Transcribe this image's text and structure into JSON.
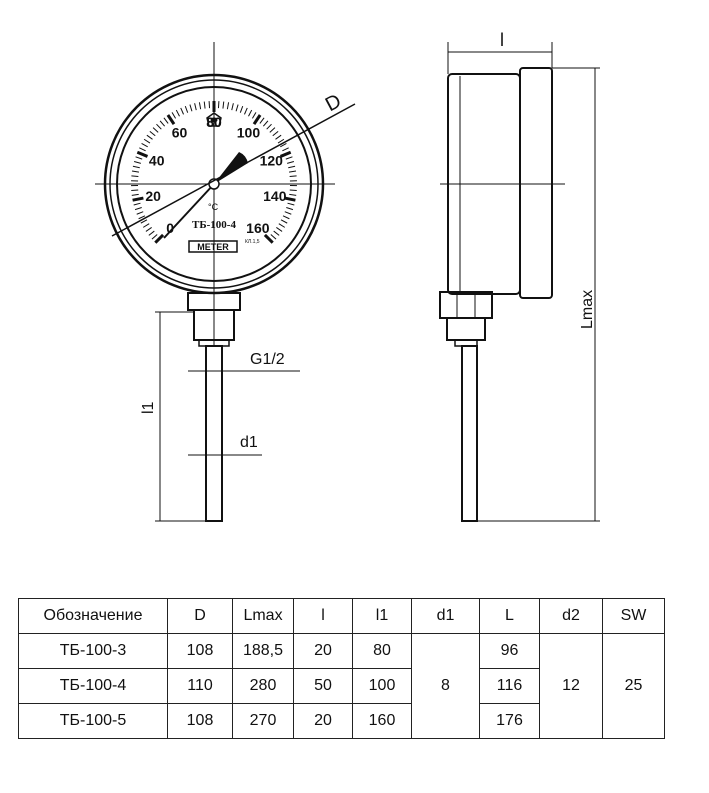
{
  "drawing": {
    "dim_D": "D",
    "dim_l": "l",
    "dim_Lmax": "Lmax",
    "dim_l1": "l1",
    "dim_G": "G1/2",
    "dim_d1": "d1",
    "dial": {
      "scale_labels": [
        "0",
        "20",
        "40",
        "60",
        "80",
        "100",
        "120",
        "140",
        "160"
      ],
      "unit": "°C",
      "model": "ТБ-100-4",
      "brand": "METER",
      "accuracy": "КЛ.1,5"
    }
  },
  "table": {
    "headers": [
      "Обозначение",
      "D",
      "Lmax",
      "l",
      "l1",
      "d1",
      "L",
      "d2",
      "SW"
    ],
    "rows": [
      {
        "name": "ТБ-100-3",
        "D": "108",
        "Lmax": "188,5",
        "l": "20",
        "l1": "80",
        "L": "96"
      },
      {
        "name": "ТБ-100-4",
        "D": "110",
        "Lmax": "280",
        "l": "50",
        "l1": "100",
        "L": "116"
      },
      {
        "name": "ТБ-100-5",
        "D": "108",
        "Lmax": "270",
        "l": "20",
        "l1": "160",
        "L": "176"
      }
    ],
    "shared": {
      "d1": "8",
      "d2": "12",
      "SW": "25"
    }
  }
}
